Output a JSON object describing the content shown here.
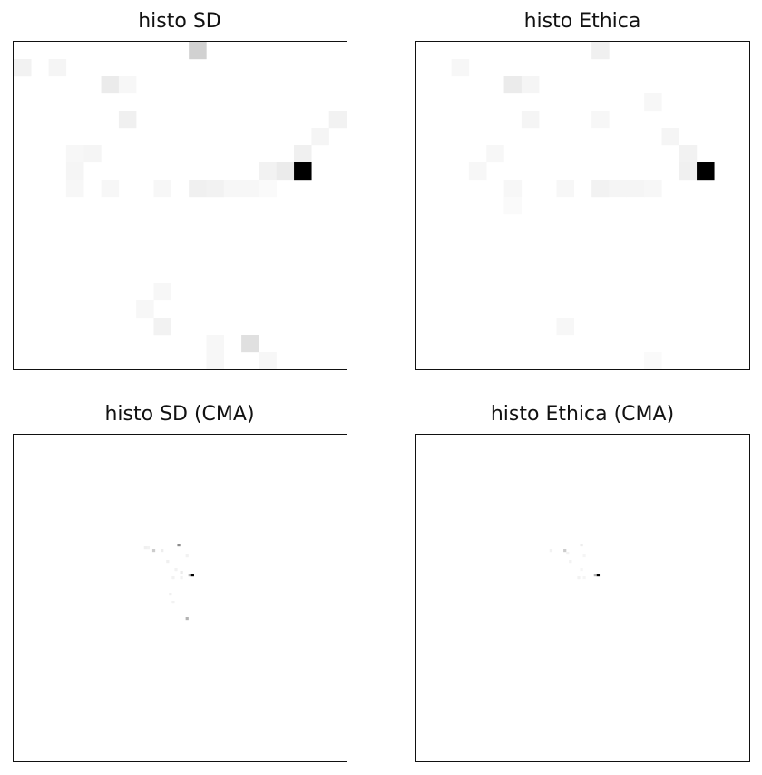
{
  "chart_data": [
    {
      "type": "heatmap",
      "title": "histo SD",
      "colormap": "greys",
      "grid_size": [
        19,
        19
      ],
      "axes_ticks": false,
      "cells": [
        [
          0,
          10,
          0.18
        ],
        [
          1,
          0,
          0.05
        ],
        [
          1,
          2,
          0.04
        ],
        [
          2,
          5,
          0.08
        ],
        [
          2,
          6,
          0.03
        ],
        [
          4,
          6,
          0.06
        ],
        [
          4,
          18,
          0.05
        ],
        [
          5,
          17,
          0.04
        ],
        [
          6,
          3,
          0.03
        ],
        [
          6,
          4,
          0.04
        ],
        [
          6,
          16,
          0.06
        ],
        [
          7,
          3,
          0.04
        ],
        [
          7,
          14,
          0.05
        ],
        [
          7,
          15,
          0.08
        ],
        [
          7,
          16,
          1.0
        ],
        [
          8,
          3,
          0.03
        ],
        [
          8,
          5,
          0.03
        ],
        [
          8,
          8,
          0.03
        ],
        [
          8,
          10,
          0.06
        ],
        [
          8,
          11,
          0.05
        ],
        [
          8,
          12,
          0.03
        ],
        [
          8,
          13,
          0.03
        ],
        [
          8,
          14,
          0.02
        ],
        [
          14,
          8,
          0.03
        ],
        [
          15,
          7,
          0.03
        ],
        [
          16,
          8,
          0.05
        ],
        [
          17,
          13,
          0.12
        ],
        [
          17,
          11,
          0.03
        ],
        [
          18,
          11,
          0.03
        ],
        [
          18,
          14,
          0.03
        ]
      ]
    },
    {
      "type": "heatmap",
      "title": "histo Ethica",
      "colormap": "greys",
      "grid_size": [
        19,
        19
      ],
      "axes_ticks": false,
      "cells": [
        [
          0,
          10,
          0.06
        ],
        [
          1,
          2,
          0.03
        ],
        [
          2,
          5,
          0.08
        ],
        [
          2,
          6,
          0.04
        ],
        [
          3,
          13,
          0.03
        ],
        [
          4,
          6,
          0.04
        ],
        [
          4,
          10,
          0.03
        ],
        [
          5,
          14,
          0.04
        ],
        [
          6,
          4,
          0.03
        ],
        [
          6,
          15,
          0.05
        ],
        [
          7,
          3,
          0.03
        ],
        [
          7,
          15,
          0.06
        ],
        [
          7,
          16,
          1.0
        ],
        [
          8,
          5,
          0.03
        ],
        [
          8,
          8,
          0.03
        ],
        [
          8,
          10,
          0.05
        ],
        [
          8,
          11,
          0.04
        ],
        [
          8,
          12,
          0.04
        ],
        [
          8,
          13,
          0.03
        ],
        [
          9,
          5,
          0.02
        ],
        [
          16,
          8,
          0.03
        ],
        [
          18,
          13,
          0.02
        ]
      ]
    },
    {
      "type": "heatmap",
      "title": "histo SD (CMA)",
      "colormap": "greys",
      "grid_size": [
        120,
        120
      ],
      "axes_ticks": false,
      "cells": [
        [
          40,
          59,
          0.45
        ],
        [
          41,
          47,
          0.06
        ],
        [
          41,
          48,
          0.05
        ],
        [
          42,
          50,
          0.2
        ],
        [
          42,
          53,
          0.07
        ],
        [
          44,
          62,
          0.05
        ],
        [
          46,
          55,
          0.06
        ],
        [
          49,
          58,
          0.05
        ],
        [
          50,
          60,
          0.08
        ],
        [
          51,
          63,
          0.3
        ],
        [
          51,
          64,
          1.0
        ],
        [
          52,
          57,
          0.05
        ],
        [
          52,
          60,
          0.05
        ],
        [
          58,
          56,
          0.06
        ],
        [
          61,
          57,
          0.05
        ],
        [
          67,
          62,
          0.3
        ]
      ]
    },
    {
      "type": "heatmap",
      "title": "histo Ethica (CMA)",
      "colormap": "greys",
      "grid_size": [
        120,
        120
      ],
      "axes_ticks": false,
      "cells": [
        [
          40,
          59,
          0.07
        ],
        [
          42,
          48,
          0.05
        ],
        [
          42,
          53,
          0.2
        ],
        [
          43,
          54,
          0.05
        ],
        [
          44,
          60,
          0.04
        ],
        [
          46,
          55,
          0.05
        ],
        [
          49,
          59,
          0.04
        ],
        [
          51,
          64,
          0.3
        ],
        [
          51,
          65,
          1.0
        ],
        [
          52,
          58,
          0.05
        ],
        [
          52,
          60,
          0.04
        ]
      ]
    }
  ]
}
